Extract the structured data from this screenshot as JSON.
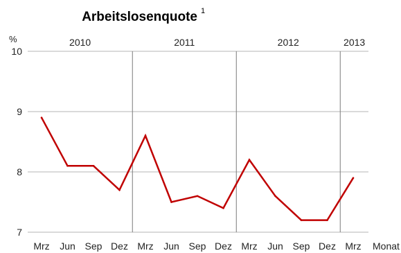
{
  "chart_data": {
    "type": "line",
    "title": "Arbeitslosenquote",
    "title_footnote": "1",
    "ylabel": "%",
    "xlabel": "Monat",
    "ylim": [
      7,
      10
    ],
    "yticks": [
      7,
      8,
      9,
      10
    ],
    "grid": true,
    "categories": [
      "Mrz",
      "Jun",
      "Sep",
      "Dez",
      "Mrz",
      "Jun",
      "Sep",
      "Dez",
      "Mrz",
      "Jun",
      "Sep",
      "Dez",
      "Mrz"
    ],
    "years": [
      {
        "label": "2010",
        "start_index": 0
      },
      {
        "label": "2011",
        "start_index": 4
      },
      {
        "label": "2012",
        "start_index": 8
      },
      {
        "label": "2013",
        "start_index": 12
      }
    ],
    "series": [
      {
        "color": "#c00000",
        "values": [
          8.9,
          8.1,
          8.1,
          7.7,
          8.6,
          7.5,
          7.6,
          7.4,
          8.2,
          7.6,
          7.2,
          7.2,
          7.9
        ]
      }
    ]
  }
}
